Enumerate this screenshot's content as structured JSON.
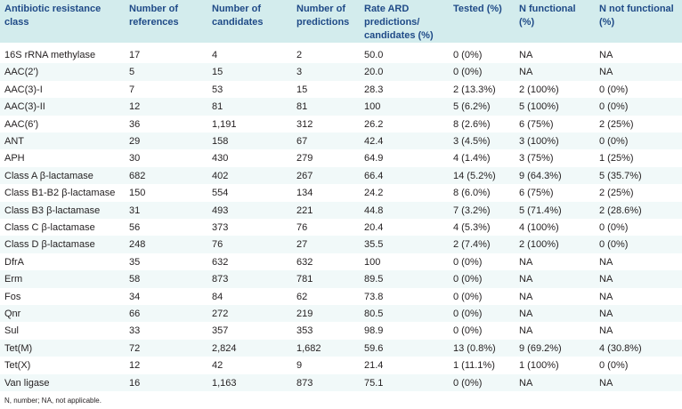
{
  "table": {
    "headers": [
      "Antibiotic resistance class",
      "Number of references",
      "Number of candidates",
      "Number of predictions",
      "Rate ARD predictions/ candidates (%)",
      "Tested (%)",
      "N functional (%)",
      "N not functional (%)"
    ],
    "header_lines": [
      [
        "Antibiotic resistance",
        "class"
      ],
      [
        "Number of",
        "references"
      ],
      [
        "Number of",
        "candidates"
      ],
      [
        "Number of",
        "predictions"
      ],
      [
        "Rate ARD",
        "predictions/",
        "candidates (%)"
      ],
      [
        "Tested (%)"
      ],
      [
        "N functional",
        "(%)"
      ],
      [
        "N not functional",
        "(%)"
      ]
    ],
    "rows": [
      [
        "16S rRNA methylase",
        "17",
        "4",
        "2",
        "50.0",
        "0 (0%)",
        "NA",
        "NA"
      ],
      [
        "AAC(2')",
        "5",
        "15",
        "3",
        "20.0",
        "0 (0%)",
        "NA",
        "NA"
      ],
      [
        "AAC(3)-I",
        "7",
        "53",
        "15",
        "28.3",
        "2 (13.3%)",
        "2 (100%)",
        "0 (0%)"
      ],
      [
        "AAC(3)-II",
        "12",
        "81",
        "81",
        "100",
        "5 (6.2%)",
        "5 (100%)",
        "0 (0%)"
      ],
      [
        "AAC(6')",
        "36",
        "1,191",
        "312",
        "26.2",
        "8 (2.6%)",
        "6 (75%)",
        "2 (25%)"
      ],
      [
        "ANT",
        "29",
        "158",
        "67",
        "42.4",
        "3 (4.5%)",
        "3 (100%)",
        "0 (0%)"
      ],
      [
        "APH",
        "30",
        "430",
        "279",
        "64.9",
        "4 (1.4%)",
        "3 (75%)",
        "1 (25%)"
      ],
      [
        "Class A β-lactamase",
        "682",
        "402",
        "267",
        "66.4",
        "14 (5.2%)",
        "9 (64.3%)",
        "5 (35.7%)"
      ],
      [
        "Class B1-B2 β-lactamase",
        "150",
        "554",
        "134",
        "24.2",
        "8 (6.0%)",
        "6 (75%)",
        "2 (25%)"
      ],
      [
        "Class B3 β-lactamase",
        "31",
        "493",
        "221",
        "44.8",
        "7 (3.2%)",
        "5 (71.4%)",
        "2 (28.6%)"
      ],
      [
        "Class C β-lactamase",
        "56",
        "373",
        "76",
        "20.4",
        "4 (5.3%)",
        "4 (100%)",
        "0 (0%)"
      ],
      [
        "Class D β-lactamase",
        "248",
        "76",
        "27",
        "35.5",
        "2 (7.4%)",
        "2 (100%)",
        "0 (0%)"
      ],
      [
        "DfrA",
        "35",
        "632",
        "632",
        "100",
        "0 (0%)",
        "NA",
        "NA"
      ],
      [
        "Erm",
        "58",
        "873",
        "781",
        "89.5",
        "0 (0%)",
        "NA",
        "NA"
      ],
      [
        "Fos",
        "34",
        "84",
        "62",
        "73.8",
        "0 (0%)",
        "NA",
        "NA"
      ],
      [
        "Qnr",
        "66",
        "272",
        "219",
        "80.5",
        "0 (0%)",
        "NA",
        "NA"
      ],
      [
        "Sul",
        "33",
        "357",
        "353",
        "98.9",
        "0 (0%)",
        "NA",
        "NA"
      ],
      [
        "Tet(M)",
        "72",
        "2,824",
        "1,682",
        "59.6",
        "13 (0.8%)",
        "9 (69.2%)",
        "4 (30.8%)"
      ],
      [
        "Tet(X)",
        "12",
        "42",
        "9",
        "21.4",
        "1 (11.1%)",
        "1 (100%)",
        "0 (0%)"
      ],
      [
        "Van ligase",
        "16",
        "1,163",
        "873",
        "75.1",
        "0 (0%)",
        "NA",
        "NA"
      ]
    ],
    "footnote": "N, number; NA, not applicable."
  },
  "colors": {
    "header_bg": "#d3eced",
    "header_text": "#1f4a87",
    "alt_row_bg": "#f1f9f9",
    "body_text": "#231f20"
  }
}
